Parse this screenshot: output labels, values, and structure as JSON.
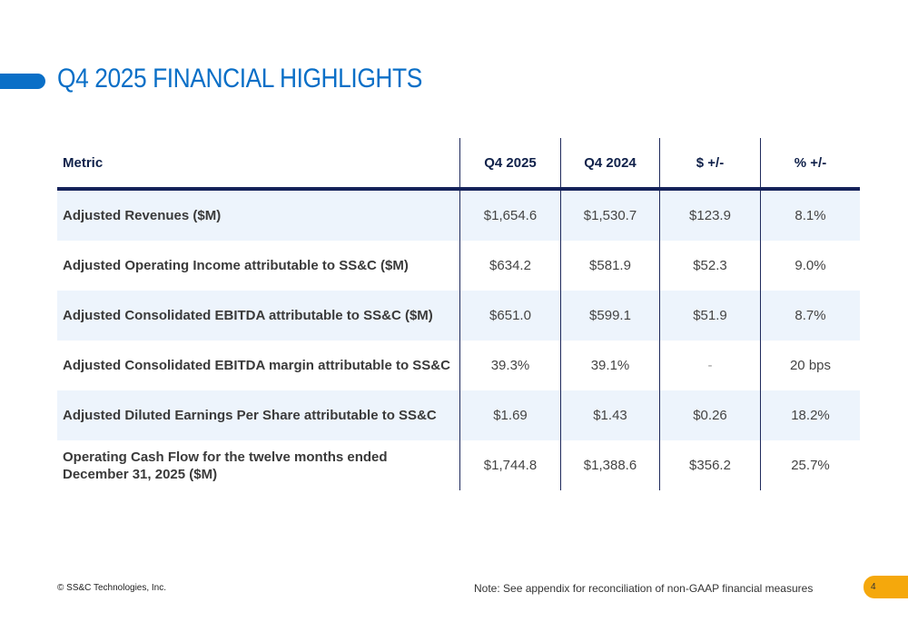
{
  "title": "Q4 2025 FINANCIAL HIGHLIGHTS",
  "colors": {
    "accent": "#0a6fc7",
    "header_rule": "#15225a",
    "row_alt": "#edf4fc",
    "page_badge": "#f5a80c"
  },
  "table": {
    "headers": [
      "Metric",
      "Q4 2025",
      "Q4 2024",
      "$ +/-",
      "% +/-"
    ],
    "rows": [
      [
        "Adjusted Revenues ($M)",
        "$1,654.6",
        "$1,530.7",
        "$123.9",
        "8.1%"
      ],
      [
        "Adjusted Operating Income attributable to SS&C ($M)",
        "$634.2",
        "$581.9",
        "$52.3",
        "9.0%"
      ],
      [
        "Adjusted Consolidated EBITDA attributable to SS&C ($M)",
        "$651.0",
        "$599.1",
        "$51.9",
        "8.7%"
      ],
      [
        "Adjusted Consolidated EBITDA margin attributable to SS&C",
        "39.3%",
        "39.1%",
        "-",
        "20 bps"
      ],
      [
        "Adjusted Diluted Earnings Per Share attributable to SS&C",
        "$1.69",
        "$1.43",
        "$0.26",
        "18.2%"
      ],
      [
        "Operating Cash Flow for the twelve months ended December 31, 2025 ($M)",
        "$1,744.8",
        "$1,388.6",
        "$356.2",
        "25.7%"
      ]
    ]
  },
  "footer": {
    "copyright": "© SS&C Technologies, Inc.",
    "note": "Note: See appendix for reconciliation of non-GAAP financial measures",
    "page_number": "4"
  }
}
